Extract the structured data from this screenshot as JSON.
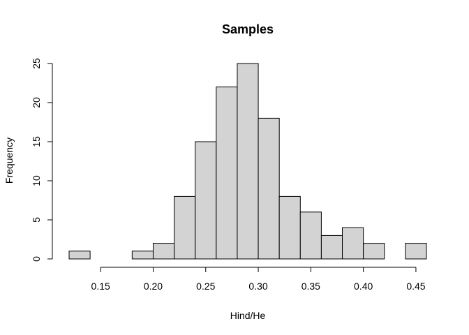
{
  "chart_data": {
    "type": "bar",
    "title": "Samples",
    "xlabel": "Hind/He",
    "ylabel": "Frequency",
    "bin_width": 0.02,
    "bins": [
      {
        "start": 0.12,
        "end": 0.14,
        "count": 1
      },
      {
        "start": 0.14,
        "end": 0.16,
        "count": 0
      },
      {
        "start": 0.16,
        "end": 0.18,
        "count": 0
      },
      {
        "start": 0.18,
        "end": 0.2,
        "count": 1
      },
      {
        "start": 0.2,
        "end": 0.22,
        "count": 2
      },
      {
        "start": 0.22,
        "end": 0.24,
        "count": 8
      },
      {
        "start": 0.24,
        "end": 0.26,
        "count": 15
      },
      {
        "start": 0.26,
        "end": 0.28,
        "count": 22
      },
      {
        "start": 0.28,
        "end": 0.3,
        "count": 25
      },
      {
        "start": 0.3,
        "end": 0.32,
        "count": 18
      },
      {
        "start": 0.32,
        "end": 0.34,
        "count": 8
      },
      {
        "start": 0.34,
        "end": 0.36,
        "count": 6
      },
      {
        "start": 0.36,
        "end": 0.38,
        "count": 3
      },
      {
        "start": 0.38,
        "end": 0.4,
        "count": 4
      },
      {
        "start": 0.4,
        "end": 0.42,
        "count": 2
      },
      {
        "start": 0.42,
        "end": 0.44,
        "count": 0
      },
      {
        "start": 0.44,
        "end": 0.46,
        "count": 2
      }
    ],
    "xlim": [
      0.12,
      0.46
    ],
    "ylim": [
      0,
      25
    ],
    "x_ticks": [
      0.15,
      0.2,
      0.25,
      0.3,
      0.35,
      0.4,
      0.45
    ],
    "x_tick_labels": [
      "0.15",
      "0.20",
      "0.25",
      "0.30",
      "0.35",
      "0.40",
      "0.45"
    ],
    "y_ticks": [
      0,
      5,
      10,
      15,
      20,
      25
    ],
    "y_tick_labels": [
      "0",
      "5",
      "10",
      "15",
      "20",
      "25"
    ],
    "grid": false,
    "legend": "none",
    "colors": {
      "bar_fill": "#d3d3d3",
      "bar_stroke": "#000000",
      "axis": "#000000",
      "background": "#ffffff"
    }
  }
}
